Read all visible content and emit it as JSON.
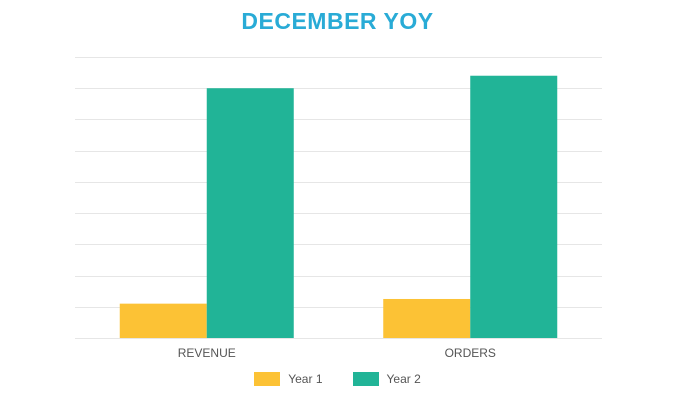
{
  "colors": {
    "title": "#29abd6",
    "year1": "#fcc235",
    "year2": "#21b497",
    "grid": "#e6e6e6",
    "text": "#555555"
  },
  "chart_data": {
    "type": "bar",
    "title": "DECEMBER YOY",
    "categories": [
      "REVENUE",
      "ORDERS"
    ],
    "series": [
      {
        "name": "Year 1",
        "values": [
          1.1,
          1.25
        ]
      },
      {
        "name": "Year 2",
        "values": [
          8.0,
          8.4
        ]
      }
    ],
    "ylim": [
      0,
      9
    ],
    "grid": true,
    "legend": "bottom"
  }
}
